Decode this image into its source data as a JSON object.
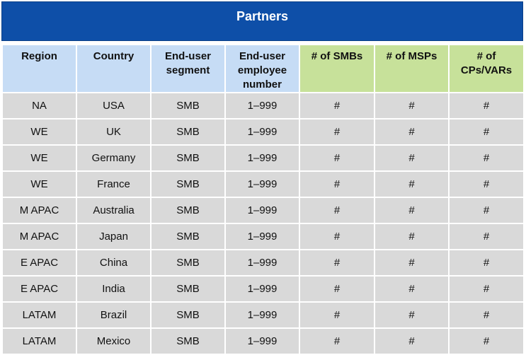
{
  "title": "Partners",
  "columns": [
    {
      "label": "Region",
      "group": "blue"
    },
    {
      "label": "Country",
      "group": "blue"
    },
    {
      "label": "End-user segment",
      "group": "blue"
    },
    {
      "label": "End-user employee number",
      "group": "blue"
    },
    {
      "label": "# of SMBs",
      "group": "green"
    },
    {
      "label": "# of MSPs",
      "group": "green"
    },
    {
      "label": "# of CPs/VARs",
      "group": "green"
    }
  ],
  "rows": [
    [
      "NA",
      "USA",
      "SMB",
      "1–999",
      "#",
      "#",
      "#"
    ],
    [
      "WE",
      "UK",
      "SMB",
      "1–999",
      "#",
      "#",
      "#"
    ],
    [
      "WE",
      "Germany",
      "SMB",
      "1–999",
      "#",
      "#",
      "#"
    ],
    [
      "WE",
      "France",
      "SMB",
      "1–999",
      "#",
      "#",
      "#"
    ],
    [
      "M APAC",
      "Australia",
      "SMB",
      "1–999",
      "#",
      "#",
      "#"
    ],
    [
      "M APAC",
      "Japan",
      "SMB",
      "1–999",
      "#",
      "#",
      "#"
    ],
    [
      "E APAC",
      "China",
      "SMB",
      "1–999",
      "#",
      "#",
      "#"
    ],
    [
      "E APAC",
      "India",
      "SMB",
      "1–999",
      "#",
      "#",
      "#"
    ],
    [
      "LATAM",
      "Brazil",
      "SMB",
      "1–999",
      "#",
      "#",
      "#"
    ],
    [
      "LATAM",
      "Mexico",
      "SMB",
      "1–999",
      "#",
      "#",
      "#"
    ]
  ],
  "colors": {
    "banner": "#0e4fa8",
    "header_blue": "#c6dcf5",
    "header_green": "#c7e19a",
    "cell": "#d9d9d9"
  }
}
